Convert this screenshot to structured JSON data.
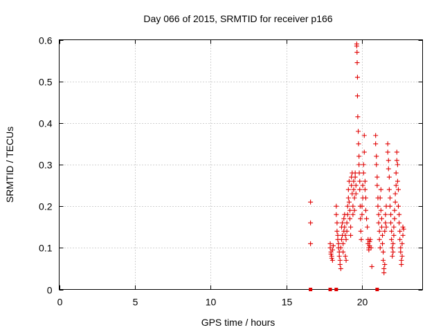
{
  "chart_data": {
    "type": "scatter",
    "title": "Day 066 of 2015, SRMTID for receiver p166",
    "xlabel": "GPS time / hours",
    "ylabel": "SRMTID / TECUs",
    "xlim": [
      0,
      24
    ],
    "ylim": [
      0,
      0.6
    ],
    "xticks": [
      0,
      5,
      10,
      15,
      20
    ],
    "xtick_labels": [
      "0",
      "5",
      "10",
      "15",
      "20"
    ],
    "yticks": [
      0,
      0.1,
      0.2,
      0.3,
      0.4,
      0.5,
      0.6
    ],
    "ytick_labels": [
      "0",
      "0.1",
      "0.2",
      "0.3",
      "0.4",
      "0.5",
      "0.6"
    ],
    "grid": true,
    "marker": "+",
    "color": "#e00000",
    "series": [
      {
        "name": "SRMTID",
        "points": [
          [
            16.6,
            0.21
          ],
          [
            16.6,
            0.16
          ],
          [
            16.6,
            0.11
          ],
          [
            17.9,
            0.11
          ],
          [
            17.9,
            0.1
          ],
          [
            17.95,
            0.09
          ],
          [
            17.95,
            0.085
          ],
          [
            18.0,
            0.08
          ],
          [
            18.0,
            0.075
          ],
          [
            18.05,
            0.07
          ],
          [
            18.05,
            0.095
          ],
          [
            18.1,
            0.105
          ],
          [
            18.3,
            0.2
          ],
          [
            18.3,
            0.18
          ],
          [
            18.35,
            0.16
          ],
          [
            18.35,
            0.14
          ],
          [
            18.4,
            0.13
          ],
          [
            18.4,
            0.12
          ],
          [
            18.45,
            0.11
          ],
          [
            18.45,
            0.1
          ],
          [
            18.5,
            0.09
          ],
          [
            18.5,
            0.08
          ],
          [
            18.55,
            0.07
          ],
          [
            18.55,
            0.06
          ],
          [
            18.6,
            0.05
          ],
          [
            18.6,
            0.1
          ],
          [
            18.65,
            0.12
          ],
          [
            18.65,
            0.15
          ],
          [
            18.7,
            0.16
          ],
          [
            18.7,
            0.13
          ],
          [
            18.75,
            0.11
          ],
          [
            18.75,
            0.09
          ],
          [
            18.8,
            0.14
          ],
          [
            18.8,
            0.17
          ],
          [
            18.85,
            0.18
          ],
          [
            18.85,
            0.15
          ],
          [
            18.9,
            0.13
          ],
          [
            18.9,
            0.08
          ],
          [
            18.95,
            0.07
          ],
          [
            18.95,
            0.12
          ],
          [
            19.0,
            0.14
          ],
          [
            19.0,
            0.16
          ],
          [
            19.05,
            0.18
          ],
          [
            19.05,
            0.2
          ],
          [
            19.1,
            0.22
          ],
          [
            19.1,
            0.24
          ],
          [
            19.15,
            0.26
          ],
          [
            19.15,
            0.21
          ],
          [
            19.2,
            0.19
          ],
          [
            19.2,
            0.17
          ],
          [
            19.25,
            0.15
          ],
          [
            19.25,
            0.13
          ],
          [
            19.3,
            0.25
          ],
          [
            19.3,
            0.27
          ],
          [
            19.35,
            0.28
          ],
          [
            19.35,
            0.23
          ],
          [
            19.4,
            0.2
          ],
          [
            19.4,
            0.18
          ],
          [
            19.45,
            0.26
          ],
          [
            19.45,
            0.24
          ],
          [
            19.5,
            0.22
          ],
          [
            19.5,
            0.19
          ],
          [
            19.55,
            0.28
          ],
          [
            19.55,
            0.27
          ],
          [
            19.6,
            0.25
          ],
          [
            19.6,
            0.23
          ],
          [
            19.65,
            0.59
          ],
          [
            19.65,
            0.585
          ],
          [
            19.67,
            0.57
          ],
          [
            19.68,
            0.545
          ],
          [
            19.7,
            0.51
          ],
          [
            19.7,
            0.465
          ],
          [
            19.72,
            0.415
          ],
          [
            19.75,
            0.38
          ],
          [
            19.77,
            0.35
          ],
          [
            19.8,
            0.32
          ],
          [
            19.8,
            0.3
          ],
          [
            19.82,
            0.28
          ],
          [
            19.85,
            0.26
          ],
          [
            19.85,
            0.24
          ],
          [
            19.88,
            0.2
          ],
          [
            19.9,
            0.17
          ],
          [
            19.92,
            0.14
          ],
          [
            19.95,
            0.12
          ],
          [
            20.0,
            0.18
          ],
          [
            20.0,
            0.2
          ],
          [
            20.05,
            0.22
          ],
          [
            20.05,
            0.25
          ],
          [
            20.1,
            0.28
          ],
          [
            20.1,
            0.3
          ],
          [
            20.15,
            0.33
          ],
          [
            20.15,
            0.37
          ],
          [
            20.2,
            0.26
          ],
          [
            20.2,
            0.24
          ],
          [
            20.25,
            0.22
          ],
          [
            20.25,
            0.19
          ],
          [
            20.3,
            0.17
          ],
          [
            20.35,
            0.15
          ],
          [
            20.4,
            0.12
          ],
          [
            20.4,
            0.11
          ],
          [
            20.45,
            0.1
          ],
          [
            20.45,
            0.095
          ],
          [
            20.5,
            0.105
          ],
          [
            20.5,
            0.115
          ],
          [
            20.55,
            0.12
          ],
          [
            20.6,
            0.1
          ],
          [
            20.65,
            0.055
          ],
          [
            20.9,
            0.37
          ],
          [
            20.9,
            0.35
          ],
          [
            20.95,
            0.32
          ],
          [
            20.95,
            0.3
          ],
          [
            21.0,
            0.27
          ],
          [
            21.0,
            0.25
          ],
          [
            21.05,
            0.22
          ],
          [
            21.05,
            0.2
          ],
          [
            21.1,
            0.18
          ],
          [
            21.1,
            0.16
          ],
          [
            21.15,
            0.14
          ],
          [
            21.15,
            0.12
          ],
          [
            21.2,
            0.1
          ],
          [
            21.2,
            0.22
          ],
          [
            21.25,
            0.24
          ],
          [
            21.25,
            0.19
          ],
          [
            21.3,
            0.17
          ],
          [
            21.3,
            0.15
          ],
          [
            21.35,
            0.13
          ],
          [
            21.35,
            0.11
          ],
          [
            21.4,
            0.09
          ],
          [
            21.4,
            0.07
          ],
          [
            21.45,
            0.05
          ],
          [
            21.45,
            0.04
          ],
          [
            21.5,
            0.06
          ],
          [
            21.5,
            0.14
          ],
          [
            21.55,
            0.16
          ],
          [
            21.55,
            0.18
          ],
          [
            21.6,
            0.2
          ],
          [
            21.6,
            0.15
          ],
          [
            21.7,
            0.35
          ],
          [
            21.7,
            0.33
          ],
          [
            21.75,
            0.31
          ],
          [
            21.75,
            0.29
          ],
          [
            21.8,
            0.27
          ],
          [
            21.8,
            0.24
          ],
          [
            21.85,
            0.22
          ],
          [
            21.85,
            0.2
          ],
          [
            21.9,
            0.18
          ],
          [
            21.9,
            0.16
          ],
          [
            21.95,
            0.14
          ],
          [
            21.95,
            0.12
          ],
          [
            22.0,
            0.1
          ],
          [
            22.0,
            0.08
          ],
          [
            22.05,
            0.09
          ],
          [
            22.05,
            0.11
          ],
          [
            22.1,
            0.13
          ],
          [
            22.1,
            0.15
          ],
          [
            22.15,
            0.17
          ],
          [
            22.15,
            0.19
          ],
          [
            22.2,
            0.21
          ],
          [
            22.2,
            0.23
          ],
          [
            22.25,
            0.25
          ],
          [
            22.25,
            0.28
          ],
          [
            22.3,
            0.33
          ],
          [
            22.3,
            0.31
          ],
          [
            22.35,
            0.3
          ],
          [
            22.35,
            0.26
          ],
          [
            22.4,
            0.24
          ],
          [
            22.4,
            0.2
          ],
          [
            22.45,
            0.18
          ],
          [
            22.45,
            0.16
          ],
          [
            22.5,
            0.14
          ],
          [
            22.5,
            0.12
          ],
          [
            22.55,
            0.1
          ],
          [
            22.55,
            0.09
          ],
          [
            22.6,
            0.07
          ],
          [
            22.6,
            0.06
          ],
          [
            22.65,
            0.08
          ],
          [
            22.65,
            0.11
          ],
          [
            22.7,
            0.13
          ],
          [
            22.7,
            0.15
          ],
          [
            22.75,
            0.145
          ]
        ]
      }
    ],
    "zero_markers": {
      "marker": "square",
      "x": [
        16.6,
        17.9,
        18.3,
        21.0
      ],
      "y": [
        0,
        0,
        0,
        0
      ]
    }
  }
}
